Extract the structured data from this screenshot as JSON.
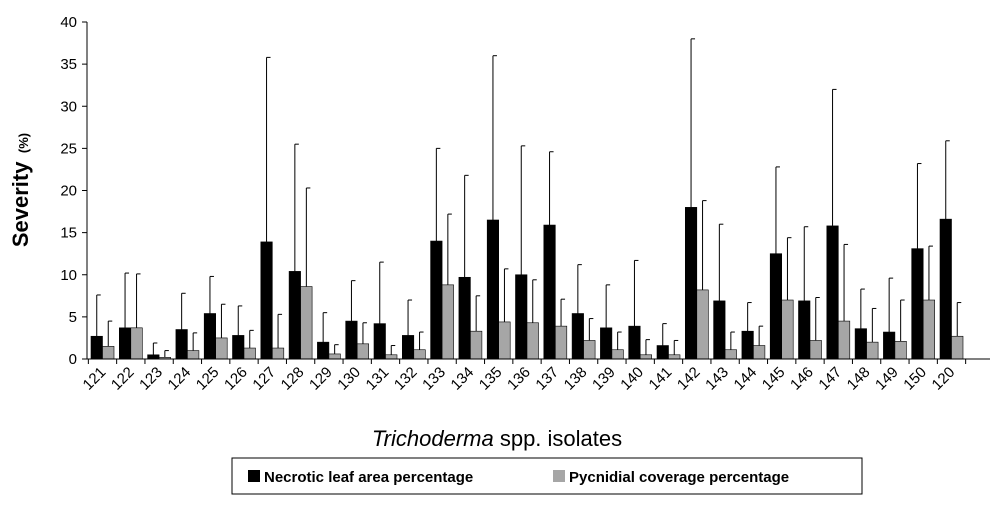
{
  "chart_data": {
    "type": "bar",
    "ylabel": "Severity",
    "ylabel_unit": "(%)",
    "xlabel_italic": "Trichoderma",
    "xlabel_rest": " spp. isolates",
    "ylim": [
      0,
      40
    ],
    "yticks": [
      0,
      5,
      10,
      15,
      20,
      25,
      30,
      35,
      40
    ],
    "grid": false,
    "legend_placement": "bottom-center",
    "categories": [
      "121",
      "122",
      "123",
      "124",
      "125",
      "126",
      "127",
      "128",
      "129",
      "130",
      "131",
      "132",
      "133",
      "134",
      "135",
      "136",
      "137",
      "138",
      "139",
      "140",
      "141",
      "142",
      "143",
      "144",
      "145",
      "146",
      "147",
      "148",
      "149",
      "150",
      "120"
    ],
    "series": [
      {
        "name": "Necrotic leaf area percentage",
        "color": "#000000",
        "values": [
          2.7,
          3.7,
          0.5,
          3.5,
          5.4,
          2.8,
          13.9,
          10.4,
          2.0,
          4.5,
          4.2,
          2.8,
          14.0,
          9.7,
          16.5,
          10.0,
          15.9,
          5.4,
          3.7,
          3.9,
          1.6,
          18.0,
          6.9,
          3.3,
          12.5,
          6.9,
          15.8,
          3.6,
          3.2,
          13.1,
          16.6
        ],
        "errors": [
          4.9,
          6.5,
          1.4,
          4.3,
          4.4,
          3.5,
          21.9,
          15.1,
          3.5,
          4.8,
          7.3,
          4.2,
          11.0,
          12.1,
          19.5,
          15.3,
          8.7,
          5.8,
          5.1,
          7.8,
          2.6,
          20.0,
          9.1,
          3.4,
          10.3,
          8.8,
          16.2,
          4.7,
          6.4,
          10.1,
          9.3
        ]
      },
      {
        "name": "Pycnidial coverage percentage",
        "color": "#a6a6a6",
        "values": [
          1.5,
          3.7,
          0.2,
          1.0,
          2.5,
          1.3,
          1.3,
          8.6,
          0.6,
          1.8,
          0.5,
          1.1,
          8.8,
          3.3,
          4.4,
          4.3,
          3.9,
          2.2,
          1.1,
          0.5,
          0.5,
          8.2,
          1.1,
          1.6,
          7.0,
          2.2,
          4.5,
          2.0,
          2.1,
          7.0,
          2.7
        ],
        "errors": [
          3.0,
          6.4,
          0.8,
          2.1,
          4.0,
          2.1,
          4.0,
          11.7,
          1.1,
          2.5,
          1.1,
          2.1,
          8.4,
          4.2,
          6.3,
          5.1,
          3.2,
          2.6,
          2.1,
          1.8,
          1.7,
          10.6,
          2.1,
          2.3,
          7.4,
          5.1,
          9.1,
          4.0,
          4.9,
          6.4,
          4.0
        ]
      }
    ]
  }
}
